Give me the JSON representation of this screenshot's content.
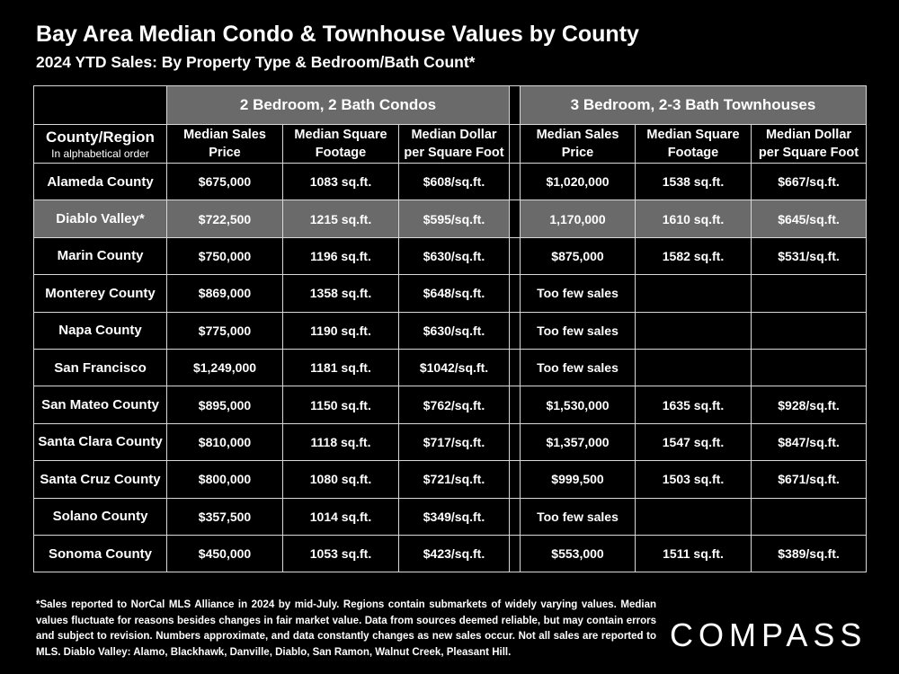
{
  "title": "Bay Area Median Condo & Townhouse Values by County",
  "subtitle": "2024 YTD Sales:  By Property Type & Bedroom/Bath Count*",
  "chart_data": {
    "type": "table",
    "groups": [
      "2 Bedroom, 2 Bath Condos",
      "3 Bedroom, 2-3 Bath Townhouses"
    ],
    "region_header": "County/Region",
    "region_subheader": "In alphabetical order",
    "columns": [
      {
        "line1": "Median Sales",
        "line2": "Price"
      },
      {
        "line1": "Median Square",
        "line2": "Footage"
      },
      {
        "line1": "Median Dollar",
        "line2": "per Square Foot"
      },
      {
        "line1": "Median Sales",
        "line2": "Price"
      },
      {
        "line1": "Median Square",
        "line2": "Footage"
      },
      {
        "line1": "Median Dollar",
        "line2": "per Square Foot"
      }
    ],
    "rows": [
      {
        "region": "Alameda County",
        "highlight": false,
        "values": [
          "$675,000",
          "1083 sq.ft.",
          "$608/sq.ft.",
          "$1,020,000",
          "1538 sq.ft.",
          "$667/sq.ft."
        ]
      },
      {
        "region": "Diablo Valley*",
        "highlight": true,
        "values": [
          "$722,500",
          "1215 sq.ft.",
          "$595/sq.ft.",
          "1,170,000",
          "1610 sq.ft.",
          "$645/sq.ft."
        ]
      },
      {
        "region": "Marin County",
        "highlight": false,
        "values": [
          "$750,000",
          "1196 sq.ft.",
          "$630/sq.ft.",
          "$875,000",
          "1582 sq.ft.",
          "$531/sq.ft."
        ]
      },
      {
        "region": "Monterey County",
        "highlight": false,
        "values": [
          "$869,000",
          "1358 sq.ft.",
          "$648/sq.ft.",
          "Too few sales",
          "",
          ""
        ]
      },
      {
        "region": "Napa County",
        "highlight": false,
        "values": [
          "$775,000",
          "1190 sq.ft.",
          "$630/sq.ft.",
          "Too few sales",
          "",
          ""
        ]
      },
      {
        "region": "San Francisco",
        "highlight": false,
        "values": [
          "$1,249,000",
          "1181 sq.ft.",
          "$1042/sq.ft.",
          "Too few sales",
          "",
          ""
        ]
      },
      {
        "region": "San Mateo County",
        "highlight": false,
        "values": [
          "$895,000",
          "1150 sq.ft.",
          "$762/sq.ft.",
          "$1,530,000",
          "1635 sq.ft.",
          "$928/sq.ft."
        ]
      },
      {
        "region": "Santa Clara County",
        "highlight": false,
        "values": [
          "$810,000",
          "1118 sq.ft.",
          "$717/sq.ft.",
          "$1,357,000",
          "1547 sq.ft.",
          "$847/sq.ft."
        ]
      },
      {
        "region": "Santa Cruz County",
        "highlight": false,
        "values": [
          "$800,000",
          "1080 sq.ft.",
          "$721/sq.ft.",
          "$999,500",
          "1503 sq.ft.",
          "$671/sq.ft."
        ]
      },
      {
        "region": "Solano County",
        "highlight": false,
        "values": [
          "$357,500",
          "1014 sq.ft.",
          "$349/sq.ft.",
          "Too few sales",
          "",
          ""
        ]
      },
      {
        "region": "Sonoma County",
        "highlight": false,
        "values": [
          "$450,000",
          "1053 sq.ft.",
          "$423/sq.ft.",
          "$553,000",
          "1511 sq.ft.",
          "$389/sq.ft."
        ]
      }
    ]
  },
  "footnote": "*Sales reported to NorCal MLS Alliance in 2024 by mid-July. Regions contain submarkets of widely varying values. Median values fluctuate for reasons besides changes in fair market value. Data from sources deemed reliable, but may contain errors and subject to revision.  Numbers approximate, and data constantly changes as new sales occur. Not all sales are reported to MLS. Diablo Valley: Alamo, Blackhawk, Danville, Diablo, San Ramon, Walnut Creek, Pleasant Hill.",
  "brand": "COMPASS",
  "colors": {
    "background": "#000000",
    "text": "#ffffff",
    "header_fill": "#6a6a6a",
    "grid": "#d8d8d8"
  }
}
